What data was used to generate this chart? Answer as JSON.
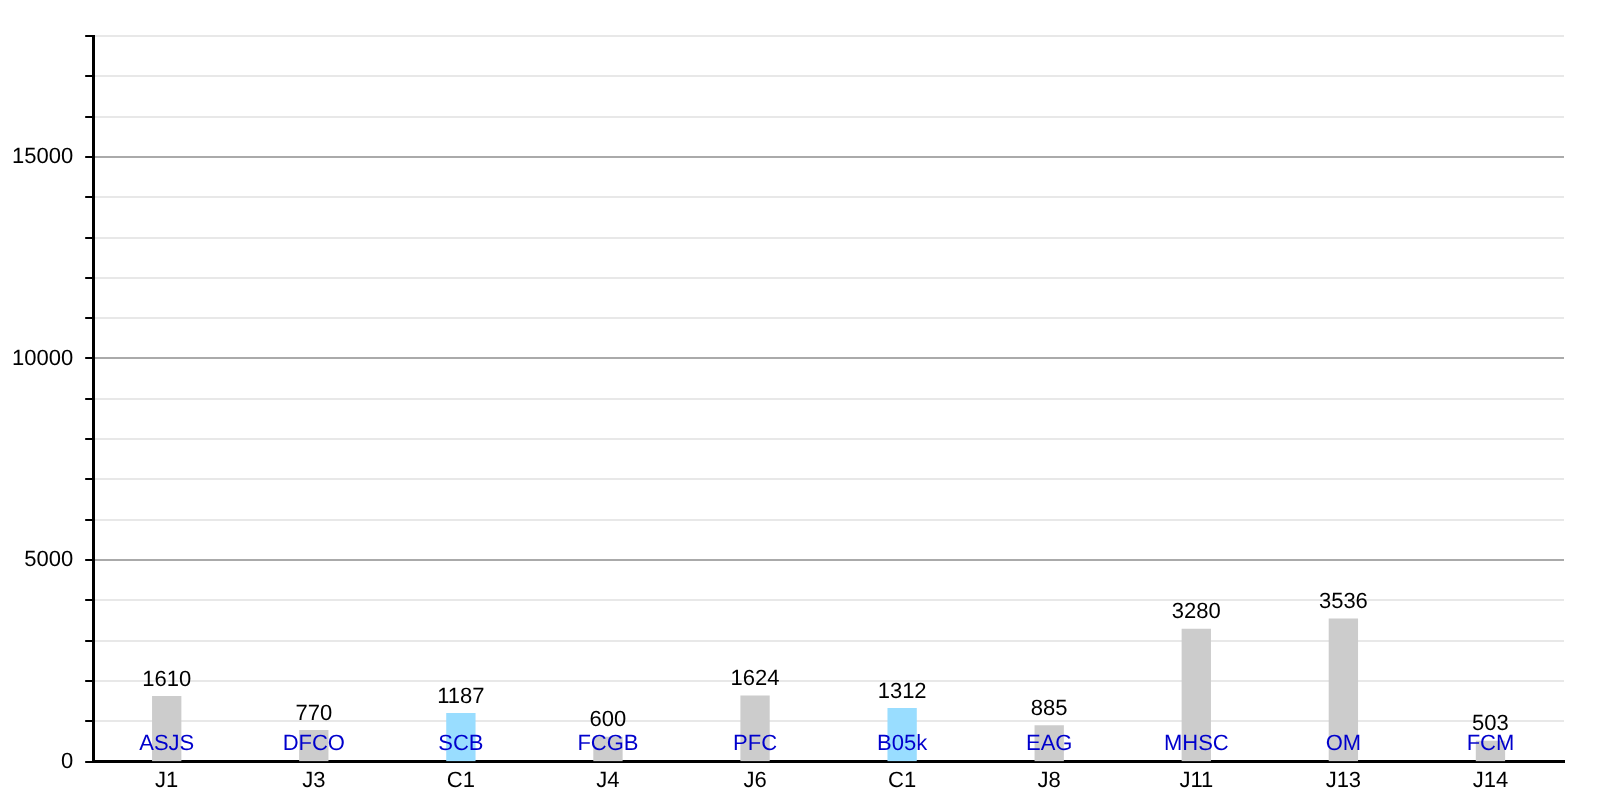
{
  "chart_data": {
    "type": "bar",
    "categories": [
      "J1",
      "J3",
      "C1",
      "J4",
      "J6",
      "C1",
      "J8",
      "J11",
      "J13",
      "J14"
    ],
    "values": [
      1610,
      770,
      1187,
      600,
      1624,
      1312,
      885,
      3280,
      3536,
      503
    ],
    "colors": [
      "#cccccc",
      "#cccccc",
      "#99ddff",
      "#cccccc",
      "#cccccc",
      "#99ddff",
      "#cccccc",
      "#cccccc",
      "#cccccc",
      "#cccccc"
    ],
    "annotations": [
      "ASJS",
      "DFCO",
      "SCB",
      "FCGB",
      "PFC",
      "B05k",
      "EAG",
      "MHSC",
      "OM",
      "FCM"
    ],
    "ylim": [
      0,
      18000
    ],
    "yticks": [
      0,
      {
        "value": 1000,
        "label": null
      },
      {
        "value": 2000,
        "label": null
      },
      {
        "value": 3000,
        "label": null
      },
      {
        "value": 4000,
        "label": null
      },
      5000,
      {
        "value": 6000,
        "label": null
      },
      {
        "value": 7000,
        "label": null
      },
      {
        "value": 8000,
        "label": null
      },
      {
        "value": 9000,
        "label": null
      },
      10000,
      {
        "value": 11000,
        "label": null
      },
      {
        "value": 12000,
        "label": null
      },
      {
        "value": 13000,
        "label": null
      },
      {
        "value": 14000,
        "label": null
      },
      15000,
      {
        "value": 16000,
        "label": null
      },
      {
        "value": 17000,
        "label": null
      },
      {
        "value": 18000,
        "label": null
      }
    ],
    "grid": true,
    "data_labels": true,
    "legend": false
  }
}
